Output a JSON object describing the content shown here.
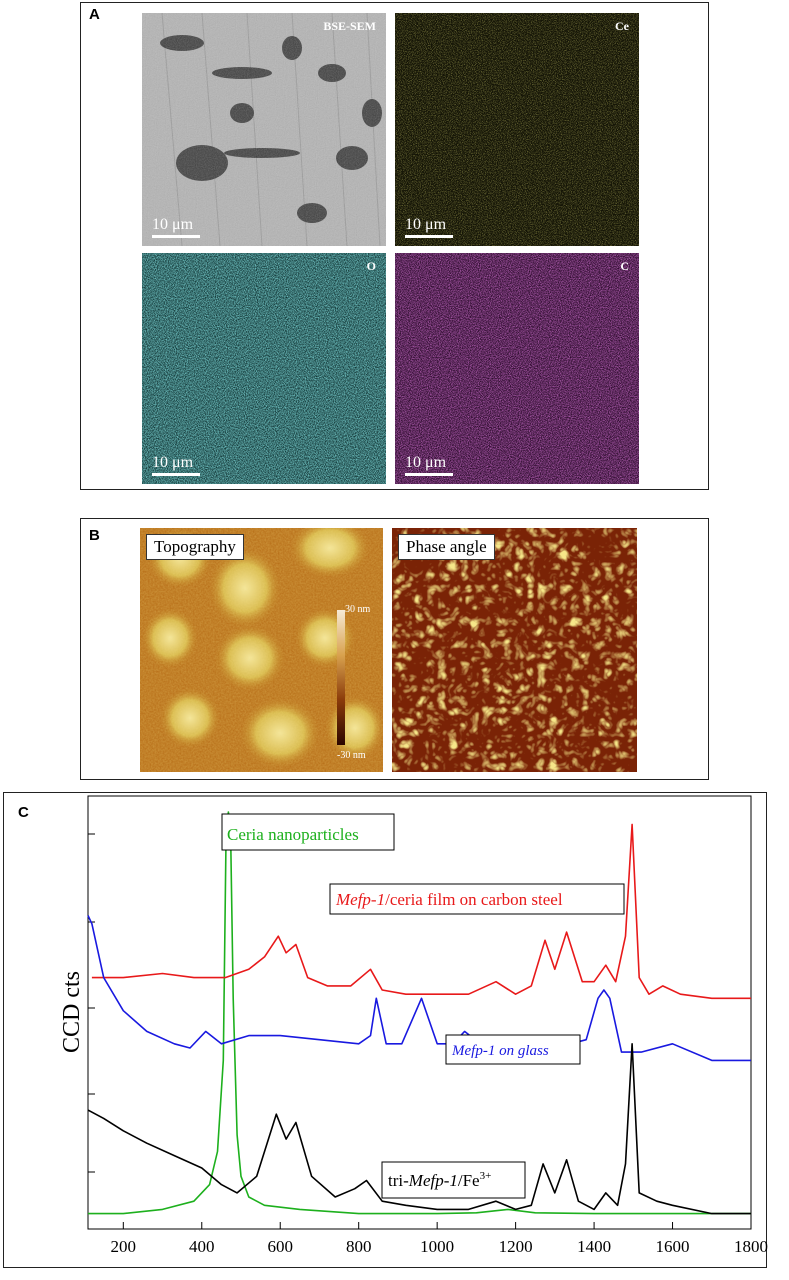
{
  "panel_a": {
    "letter": "A",
    "tiles": [
      {
        "label": "BSE-SEM",
        "scale": "10 μm",
        "color": "#b8b8b8"
      },
      {
        "label": "Ce",
        "scale": "10 μm",
        "color": "#c6c22e"
      },
      {
        "label": "O",
        "scale": "10 μm",
        "color": "#2fb1b1"
      },
      {
        "label": "C",
        "scale": "10 μm",
        "color": "#b02bb0"
      }
    ]
  },
  "panel_b": {
    "letter": "B",
    "topography_label": "Topography",
    "phase_label": "Phase angle",
    "colorbar_max": "30 nm",
    "colorbar_min": "-30 nm"
  },
  "panel_c": {
    "letter": "C",
    "annotations": {
      "ceria": "Ceria nanoparticles",
      "red_italic": "Mefp-1",
      "red_rest": "/ceria film on carbon steel",
      "blue": "Mefp-1 on glass",
      "black_prefix": "tri-",
      "black_italic": "Mefp-1",
      "black_suffix": "/Fe",
      "black_sup": "3+"
    }
  },
  "chart_data": {
    "type": "line",
    "xlabel": "",
    "ylabel": "CCD cts",
    "xlim": [
      110,
      1800
    ],
    "xticks": [
      200,
      400,
      600,
      800,
      1000,
      1200,
      1400,
      1600,
      1800
    ],
    "series": [
      {
        "name": "Ceria nanoparticles",
        "color": "#1db01d",
        "x": [
          110,
          200,
          300,
          380,
          420,
          440,
          455,
          462,
          468,
          474,
          480,
          490,
          500,
          520,
          560,
          650,
          800,
          1000,
          1100,
          1180,
          1250,
          1400,
          1600,
          1800
        ],
        "y": [
          3,
          3,
          4,
          6,
          10,
          18,
          40,
          95,
          100,
          92,
          55,
          22,
          12,
          7,
          5,
          4,
          3,
          3,
          3.2,
          4,
          3.2,
          3,
          3,
          3
        ]
      },
      {
        "name": "Mefp-1/ceria film on carbon steel",
        "color": "#e8191a",
        "x": [
          120,
          200,
          300,
          380,
          460,
          520,
          560,
          595,
          615,
          640,
          670,
          720,
          780,
          830,
          860,
          920,
          1000,
          1080,
          1150,
          1200,
          1240,
          1275,
          1300,
          1330,
          1370,
          1400,
          1430,
          1455,
          1480,
          1497,
          1515,
          1540,
          1575,
          1620,
          1700,
          1800
        ],
        "y": [
          60,
          60,
          61,
          60,
          60,
          62,
          65,
          70,
          66,
          68,
          60,
          58,
          58,
          62,
          57,
          56,
          56,
          56,
          59,
          56,
          58,
          69,
          62,
          71,
          59,
          59,
          63,
          59,
          70,
          97,
          60,
          56,
          58,
          56,
          55,
          55
        ]
      },
      {
        "name": "Mefp-1 on glass",
        "color": "#1919e0",
        "x": [
          110,
          120,
          150,
          200,
          260,
          330,
          370,
          410,
          450,
          520,
          600,
          700,
          800,
          830,
          845,
          870,
          910,
          960,
          1000,
          1040,
          1070,
          1110,
          1200,
          1300,
          1380,
          1410,
          1425,
          1440,
          1470,
          1520,
          1600,
          1700,
          1800
        ],
        "y": [
          75,
          73,
          60,
          52,
          47,
          44,
          43,
          47,
          44,
          46,
          46,
          45,
          44,
          46,
          55,
          44,
          44,
          55,
          44,
          44,
          47,
          44,
          44,
          43,
          45,
          55,
          57,
          55,
          42,
          42,
          44,
          40,
          40
        ]
      },
      {
        "name": "tri-Mefp-1/Fe3+",
        "color": "#000000",
        "x": [
          110,
          150,
          200,
          260,
          330,
          400,
          450,
          490,
          540,
          590,
          615,
          640,
          680,
          740,
          790,
          820,
          860,
          920,
          1000,
          1080,
          1150,
          1200,
          1240,
          1270,
          1300,
          1330,
          1360,
          1400,
          1430,
          1460,
          1480,
          1497,
          1515,
          1560,
          1600,
          1700,
          1800
        ],
        "y": [
          28,
          26,
          23,
          20,
          17,
          14,
          10,
          8,
          12,
          27,
          21,
          25,
          12,
          7,
          9,
          11,
          6,
          5,
          4,
          4,
          6,
          4,
          5,
          15,
          8,
          16,
          6,
          4,
          8,
          5,
          15,
          44,
          8,
          6,
          5,
          3,
          3
        ]
      }
    ]
  }
}
